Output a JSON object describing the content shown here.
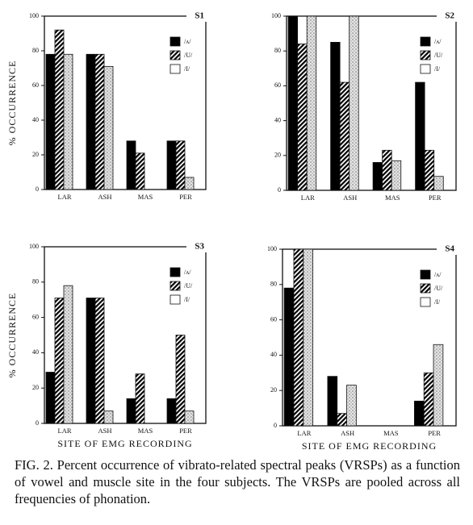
{
  "chart_data": [
    {
      "type": "bar",
      "title": "S1",
      "ylabel": "% OCCURRENCE",
      "categories": [
        "LAR",
        "ASH",
        "MAS",
        "PER"
      ],
      "series": [
        {
          "name": "/ʌ/",
          "color": "#000000",
          "pattern": "solid",
          "values": [
            78,
            78,
            28,
            28
          ]
        },
        {
          "name": "/U/",
          "color": "#000000",
          "pattern": "hatch",
          "values": [
            92,
            78,
            21,
            28
          ]
        },
        {
          "name": "/I/",
          "color": "#9a9a9a",
          "pattern": "stipple",
          "values": [
            78,
            71,
            0,
            7
          ]
        }
      ],
      "ylim": [
        0,
        100
      ],
      "yticks": [
        0,
        20,
        40,
        60,
        80,
        100
      ],
      "legend": "upper right"
    },
    {
      "type": "bar",
      "title": "S2",
      "categories": [
        "LAR",
        "ASH",
        "MAS",
        "PER"
      ],
      "series": [
        {
          "name": "/ʌ/",
          "color": "#000000",
          "pattern": "solid",
          "values": [
            100,
            85,
            16,
            62
          ]
        },
        {
          "name": "/U/",
          "color": "#000000",
          "pattern": "hatch",
          "values": [
            84,
            62,
            23,
            23
          ]
        },
        {
          "name": "/I/",
          "color": "#9a9a9a",
          "pattern": "stipple",
          "values": [
            100,
            100,
            17,
            8
          ]
        }
      ],
      "ylim": [
        0,
        100
      ],
      "yticks": [
        0,
        20,
        40,
        60,
        80,
        100
      ],
      "legend": "upper right"
    },
    {
      "type": "bar",
      "title": "S3",
      "ylabel": "% OCCURRENCE",
      "xlabel": "SITE OF EMG RECORDING",
      "categories": [
        "LAR",
        "ASH",
        "MAS",
        "PER"
      ],
      "series": [
        {
          "name": "/ʌ/",
          "color": "#000000",
          "pattern": "solid",
          "values": [
            29,
            71,
            14,
            14
          ]
        },
        {
          "name": "/U/",
          "color": "#000000",
          "pattern": "hatch",
          "values": [
            71,
            71,
            28,
            50
          ]
        },
        {
          "name": "/I/",
          "color": "#9a9a9a",
          "pattern": "stipple",
          "values": [
            78,
            7,
            0,
            7
          ]
        }
      ],
      "ylim": [
        0,
        100
      ],
      "yticks": [
        0,
        20,
        40,
        60,
        80,
        100
      ],
      "legend": "upper right"
    },
    {
      "type": "bar",
      "title": "S4",
      "xlabel": "SITE OF EMG RECORDING",
      "categories": [
        "LAR",
        "ASH",
        "MAS",
        "PER"
      ],
      "series": [
        {
          "name": "/ʌ/",
          "color": "#000000",
          "pattern": "solid",
          "values": [
            78,
            28,
            0,
            14
          ]
        },
        {
          "name": "/U/",
          "color": "#000000",
          "pattern": "hatch",
          "values": [
            100,
            7,
            0,
            30
          ]
        },
        {
          "name": "/I/",
          "color": "#9a9a9a",
          "pattern": "stipple",
          "values": [
            100,
            23,
            0,
            46
          ]
        }
      ],
      "ylim": [
        0,
        100
      ],
      "yticks": [
        0,
        20,
        40,
        60,
        80,
        100
      ],
      "legend": "upper right"
    }
  ],
  "caption": "FIG. 2. Percent occurrence of vibrato-related spectral peaks (VRSPs) as a function of vowel and muscle site in the four subjects. The VRSPs are pooled across all frequencies of phonation."
}
